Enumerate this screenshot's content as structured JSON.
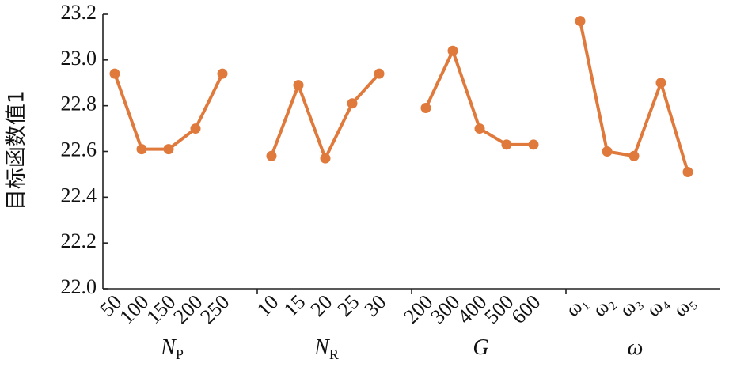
{
  "chart_data": {
    "type": "line",
    "y_label": "目标函数值1",
    "ylim": [
      22.0,
      23.2
    ],
    "yticks": [
      {
        "value": 22.0,
        "label": "22.0"
      },
      22.2,
      22.4,
      22.6,
      22.8,
      {
        "value": 23.0,
        "label": "23.0"
      },
      23.2
    ],
    "color": "#e07a3c",
    "groups": [
      {
        "name": "N",
        "sub": "P",
        "categories": [
          "50",
          "100",
          "150",
          "200",
          "250"
        ],
        "values": [
          22.94,
          22.61,
          22.61,
          22.7,
          22.94
        ]
      },
      {
        "name": "N",
        "sub": "R",
        "categories": [
          "10",
          "15",
          "20",
          "25",
          "30"
        ],
        "values": [
          22.58,
          22.89,
          22.57,
          22.81,
          22.94
        ]
      },
      {
        "name": "G",
        "categories": [
          "200",
          "300",
          "400",
          "500",
          "600"
        ],
        "values": [
          22.79,
          23.04,
          22.7,
          22.63,
          22.63
        ]
      },
      {
        "name": "ω",
        "categories": [
          "ω₁",
          "ω₂",
          "ω₃",
          "ω₄",
          "ω₅"
        ],
        "values": [
          23.17,
          22.6,
          22.58,
          22.9,
          22.51
        ]
      }
    ]
  }
}
